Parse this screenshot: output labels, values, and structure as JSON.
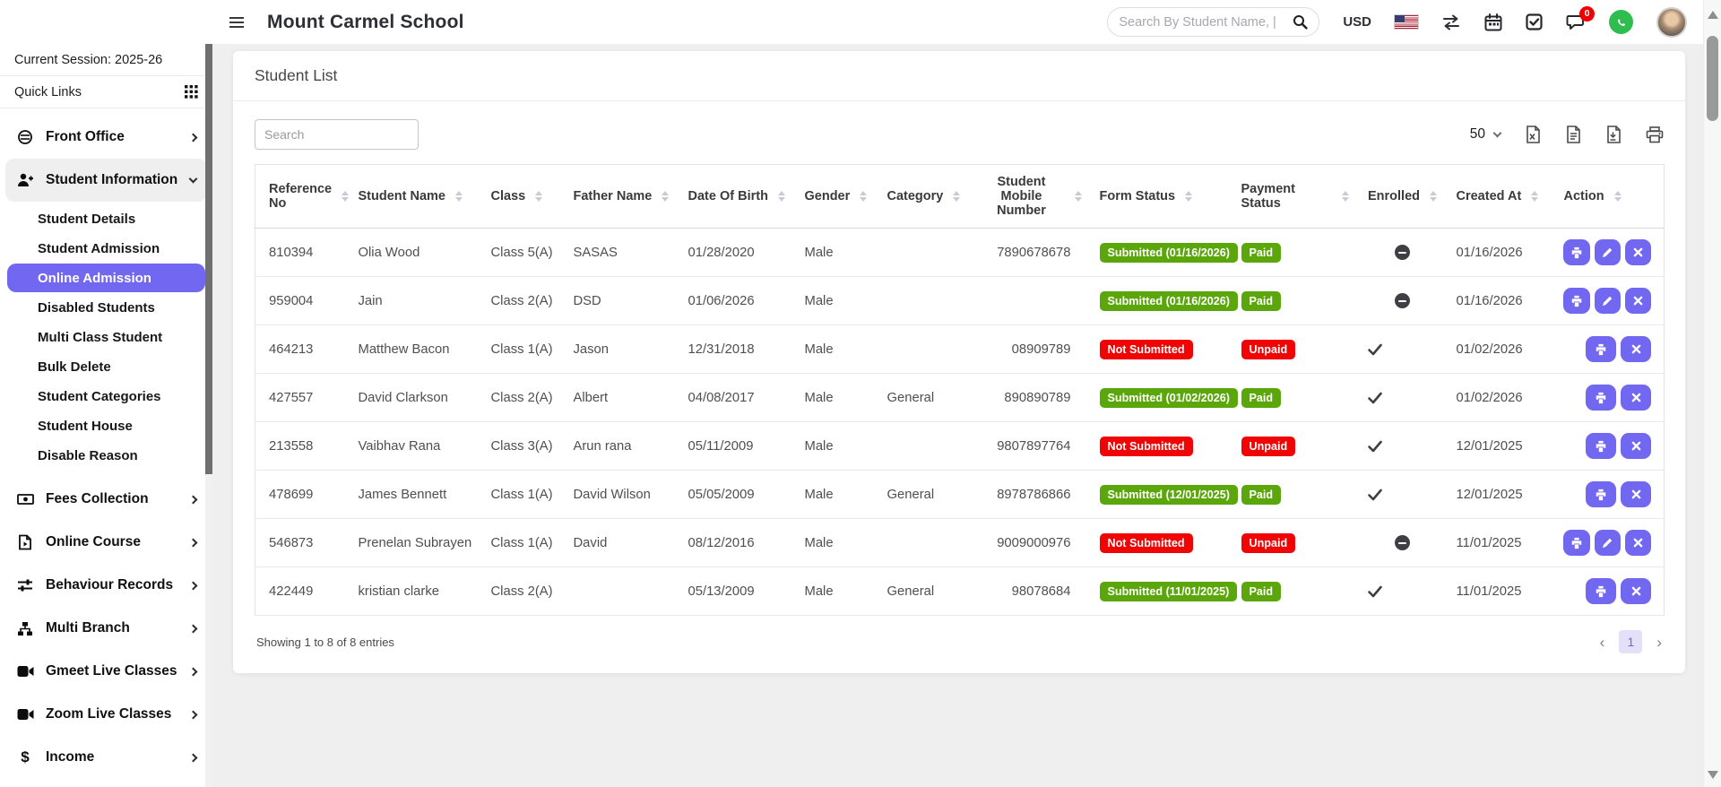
{
  "colors": {
    "accent": "#7267f0",
    "success": "#5ba70b",
    "danger": "#f10404"
  },
  "topbar": {
    "school_name": "Mount Carmel School",
    "search_placeholder": "Search By Student Name, |",
    "currency": "USD",
    "chat_badge_count": "0"
  },
  "sidebar": {
    "session": "Current Session: 2025-26",
    "quick_links": "Quick Links",
    "front_office": "Front Office",
    "student_information": "Student Information",
    "student_children": [
      "Student Details",
      "Student Admission",
      "Online Admission",
      "Disabled Students",
      "Multi Class Student",
      "Bulk Delete",
      "Student Categories",
      "Student House",
      "Disable Reason"
    ],
    "active_child": "Online Admission",
    "fees_collection": "Fees Collection",
    "online_course": "Online Course",
    "behaviour_records": "Behaviour Records",
    "multi_branch": "Multi Branch",
    "gmeet_live_classes": "Gmeet Live Classes",
    "zoom_live_classes": "Zoom Live Classes",
    "income": "Income"
  },
  "main": {
    "title": "Student List",
    "search_placeholder": "Search",
    "page_size": "50",
    "export_tools": [
      "excel",
      "csv",
      "pdf",
      "print"
    ],
    "table": {
      "columns": [
        "Reference No",
        "Student Name",
        "Class",
        "Father Name",
        "Date Of Birth",
        "Gender",
        "Category",
        "Student Mobile Number",
        "Form Status",
        "Payment Status",
        "Enrolled",
        "Created At",
        "Action"
      ],
      "rows": [
        {
          "reference": "810394",
          "student_name": "Olia Wood",
          "class": "Class 5(A)",
          "father_name": "SASAS",
          "date_of_birth": "01/28/2020",
          "gender": "Male",
          "category": "",
          "mobile": "7890678678",
          "form_status": {
            "text": "Submitted (01/16/2026)",
            "type": "success"
          },
          "payment_status": {
            "text": "Paid",
            "type": "success"
          },
          "enrolled": "minus",
          "created_at": "01/16/2026",
          "actions": [
            "print",
            "edit",
            "close"
          ]
        },
        {
          "reference": "959004",
          "student_name": "Jain",
          "class": "Class 2(A)",
          "father_name": "DSD",
          "date_of_birth": "01/06/2026",
          "gender": "Male",
          "category": "",
          "mobile": "",
          "form_status": {
            "text": "Submitted (01/16/2026)",
            "type": "success"
          },
          "payment_status": {
            "text": "Paid",
            "type": "success"
          },
          "enrolled": "minus",
          "created_at": "01/16/2026",
          "actions": [
            "print",
            "edit",
            "close"
          ]
        },
        {
          "reference": "464213",
          "student_name": "Matthew Bacon",
          "class": "Class 1(A)",
          "father_name": "Jason",
          "date_of_birth": "12/31/2018",
          "gender": "Male",
          "category": "",
          "mobile": "08909789",
          "form_status": {
            "text": "Not Submitted",
            "type": "danger"
          },
          "payment_status": {
            "text": "Unpaid",
            "type": "danger"
          },
          "enrolled": "check",
          "created_at": "01/02/2026",
          "actions": [
            "print",
            "close"
          ]
        },
        {
          "reference": "427557",
          "student_name": "David Clarkson",
          "class": "Class 2(A)",
          "father_name": "Albert",
          "date_of_birth": "04/08/2017",
          "gender": "Male",
          "category": "General",
          "mobile": "890890789",
          "form_status": {
            "text": "Submitted (01/02/2026)",
            "type": "success"
          },
          "payment_status": {
            "text": "Paid",
            "type": "success"
          },
          "enrolled": "check",
          "created_at": "01/02/2026",
          "actions": [
            "print",
            "close"
          ]
        },
        {
          "reference": "213558",
          "student_name": "Vaibhav Rana",
          "class": "Class 3(A)",
          "father_name": "Arun rana",
          "date_of_birth": "05/11/2009",
          "gender": "Male",
          "category": "",
          "mobile": "9807897764",
          "form_status": {
            "text": "Not Submitted",
            "type": "danger"
          },
          "payment_status": {
            "text": "Unpaid",
            "type": "danger"
          },
          "enrolled": "check",
          "created_at": "12/01/2025",
          "actions": [
            "print",
            "close"
          ]
        },
        {
          "reference": "478699",
          "student_name": "James Bennett",
          "class": "Class 1(A)",
          "father_name": "David Wilson",
          "date_of_birth": "05/05/2009",
          "gender": "Male",
          "category": "General",
          "mobile": "8978786866",
          "form_status": {
            "text": "Submitted (12/01/2025)",
            "type": "success"
          },
          "payment_status": {
            "text": "Paid",
            "type": "success"
          },
          "enrolled": "check",
          "created_at": "12/01/2025",
          "actions": [
            "print",
            "close"
          ]
        },
        {
          "reference": "546873",
          "student_name": "Prenelan Subrayen",
          "class": "Class 1(A)",
          "father_name": "David",
          "date_of_birth": "08/12/2016",
          "gender": "Male",
          "category": "",
          "mobile": "9009000976",
          "form_status": {
            "text": "Not Submitted",
            "type": "danger"
          },
          "payment_status": {
            "text": "Unpaid",
            "type": "danger"
          },
          "enrolled": "minus",
          "created_at": "11/01/2025",
          "actions": [
            "print",
            "edit",
            "close"
          ]
        },
        {
          "reference": "422449",
          "student_name": "kristian clarke",
          "class": "Class 2(A)",
          "father_name": "",
          "date_of_birth": "05/13/2009",
          "gender": "Male",
          "category": "General",
          "mobile": "98078684",
          "form_status": {
            "text": "Submitted (11/01/2025)",
            "type": "success"
          },
          "payment_status": {
            "text": "Paid",
            "type": "success"
          },
          "enrolled": "check",
          "created_at": "11/01/2025",
          "actions": [
            "print",
            "close"
          ]
        }
      ]
    },
    "footer": {
      "showing": "Showing 1 to 8 of 8 entries",
      "prev": "‹",
      "page": "1",
      "next": "›"
    }
  }
}
